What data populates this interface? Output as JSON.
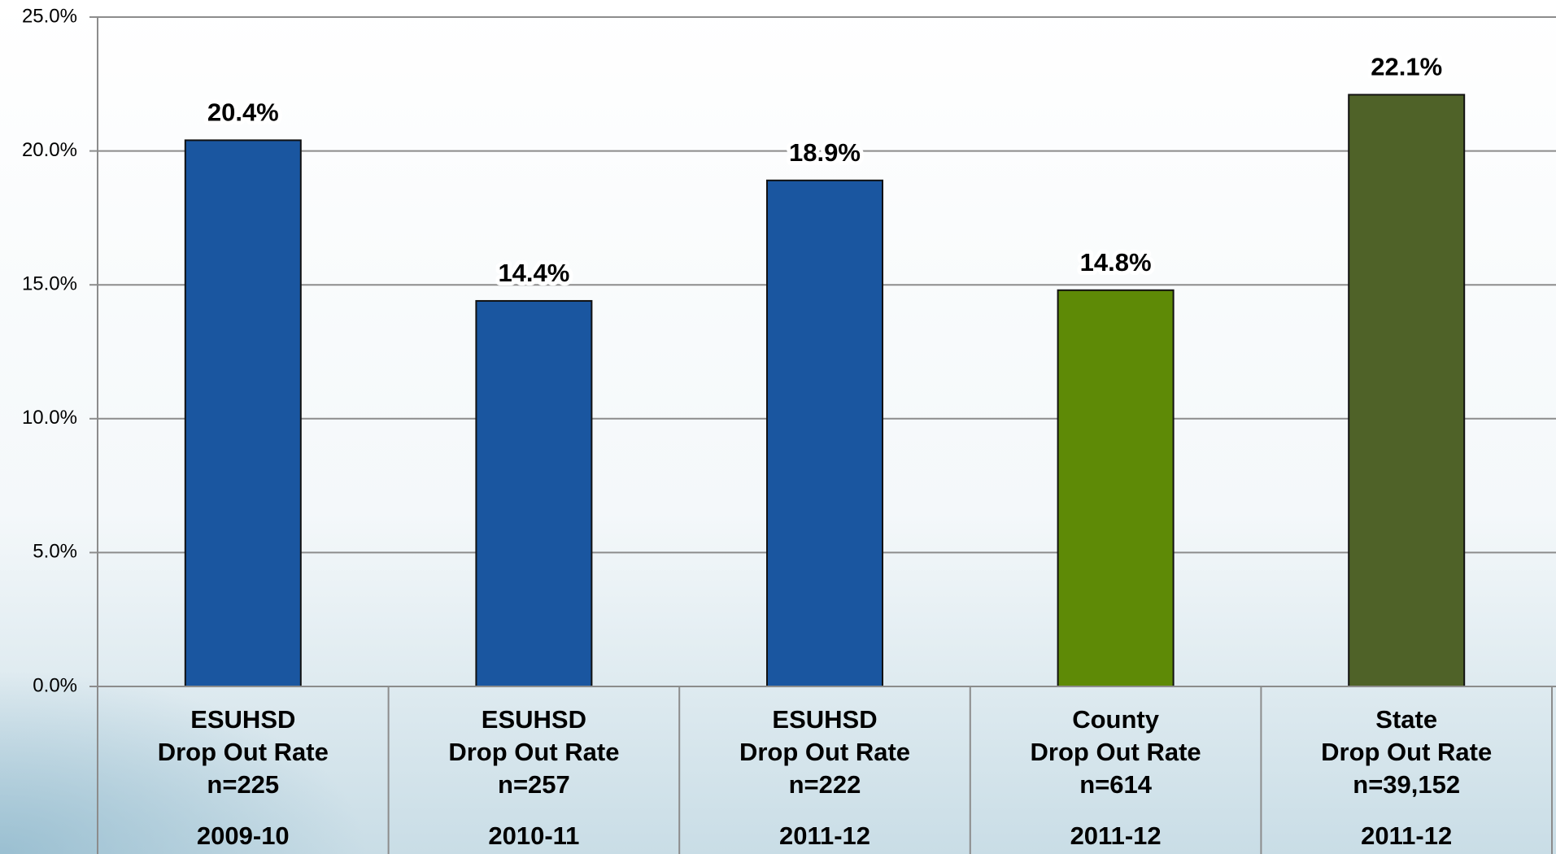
{
  "chart_data": {
    "type": "bar",
    "categories": [
      [
        "ESUHSD",
        "Drop Out Rate",
        "n=225",
        "2009-10"
      ],
      [
        "ESUHSD",
        "Drop Out Rate",
        "n=257",
        "2010-11"
      ],
      [
        "ESUHSD",
        "Drop Out Rate",
        "n=222",
        "2011-12"
      ],
      [
        "County",
        "Drop Out Rate",
        "n=614",
        "2011-12"
      ],
      [
        "State",
        "Drop Out Rate",
        "n=39,152",
        "2011-12"
      ]
    ],
    "values": [
      20.4,
      14.4,
      18.9,
      14.8,
      22.1
    ],
    "value_labels": [
      "20.4%",
      "14.4%",
      "18.9%",
      "14.8%",
      "22.1%"
    ],
    "colors": [
      "#1a56a0",
      "#1a56a0",
      "#1a56a0",
      "#5e8a06",
      "#4f6228"
    ],
    "ylim": [
      0,
      25
    ],
    "yticks": [
      {
        "value": 0,
        "label": "0.0%"
      },
      {
        "value": 5,
        "label": "5.0%"
      },
      {
        "value": 10,
        "label": "10.0%"
      },
      {
        "value": 15,
        "label": "15.0%"
      },
      {
        "value": 20,
        "label": "20.0%"
      },
      {
        "value": 25,
        "label": "25.0%"
      }
    ],
    "grid": true
  }
}
